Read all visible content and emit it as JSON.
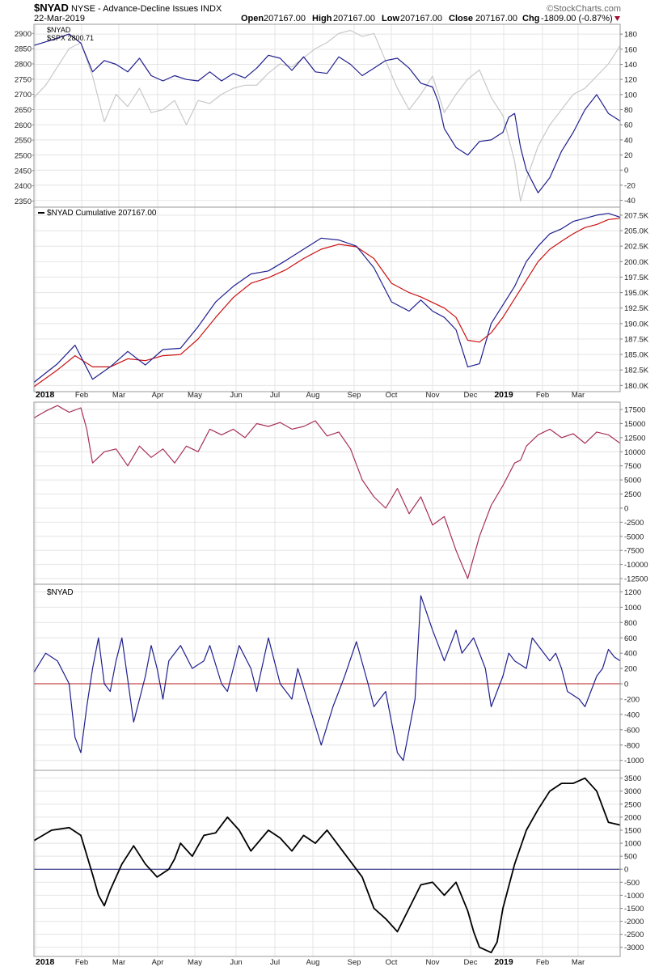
{
  "header": {
    "symbol": "$NYAD",
    "description": "NYSE - Advance-Decline Issues",
    "exchange": "INDX",
    "date": "22-Mar-2019",
    "open_label": "Open",
    "open": "207167.00",
    "high_label": "High",
    "high": "207167.00",
    "low_label": "Low",
    "low": "207167.00",
    "close_label": "Close",
    "close": "207167.00",
    "chg_label": "Chg",
    "chg": "-1809.00 (-0.87%)",
    "chg_icon": "down-triangle-icon",
    "watermark": "©StockCharts.com"
  },
  "x_axis": {
    "months": [
      "2018",
      "Feb",
      "Mar",
      "Apr",
      "May",
      "Jun",
      "Jul",
      "Aug",
      "Sep",
      "Oct",
      "Nov",
      "Dec",
      "2019",
      "Feb",
      "Mar"
    ],
    "bold_labels": [
      "2018",
      "2019"
    ]
  },
  "colors": {
    "navy": "#1f1f8f",
    "gray": "#c8c8c8",
    "red": "#cc1111",
    "maroon": "#a83057",
    "black": "#000000",
    "grid": "#e4e4e4",
    "border": "#9a9a9a",
    "zero_red": "#b01c1c",
    "zero_navy": "#1a1a7a"
  },
  "chart_data": [
    {
      "panel": "price",
      "type": "line",
      "legend": [
        "$NYAD",
        "$SPX 2800.71"
      ],
      "left_axis": {
        "label": "$SPX",
        "ticks": [
          2350,
          2400,
          2450,
          2500,
          2550,
          2600,
          2650,
          2700,
          2750,
          2800,
          2850,
          2900
        ],
        "range": [
          2330,
          2930
        ]
      },
      "right_axis": {
        "label": "$NYAD",
        "ticks": [
          -40,
          -20,
          0,
          20,
          40,
          60,
          80,
          100,
          120,
          140,
          160,
          180
        ],
        "range": [
          -49,
          193
        ]
      },
      "series": [
        {
          "name": "$NYAD",
          "axis": "right",
          "color": "navy",
          "x": [
            0,
            0.03,
            0.06,
            0.08,
            0.1,
            0.12,
            0.14,
            0.16,
            0.18,
            0.2,
            0.22,
            0.24,
            0.26,
            0.28,
            0.3,
            0.32,
            0.34,
            0.36,
            0.38,
            0.4,
            0.42,
            0.44,
            0.46,
            0.48,
            0.5,
            0.52,
            0.54,
            0.56,
            0.58,
            0.6,
            0.62,
            0.64,
            0.66,
            0.68,
            0.69,
            0.7,
            0.72,
            0.74,
            0.76,
            0.78,
            0.8,
            0.81,
            0.82,
            0.83,
            0.84,
            0.86,
            0.88,
            0.9,
            0.92,
            0.94,
            0.96,
            0.98,
            1.0
          ],
          "values": [
            165,
            172,
            180,
            168,
            130,
            145,
            140,
            130,
            148,
            125,
            118,
            125,
            120,
            118,
            130,
            118,
            128,
            122,
            135,
            152,
            148,
            132,
            150,
            130,
            128,
            150,
            140,
            125,
            135,
            145,
            148,
            135,
            115,
            110,
            90,
            55,
            30,
            20,
            38,
            40,
            50,
            70,
            75,
            30,
            0,
            -30,
            -10,
            25,
            50,
            80,
            100,
            75,
            65
          ]
        },
        {
          "name": "$SPX",
          "axis": "left",
          "color": "gray",
          "x": [
            0,
            0.02,
            0.04,
            0.06,
            0.08,
            0.1,
            0.12,
            0.14,
            0.16,
            0.18,
            0.2,
            0.22,
            0.24,
            0.26,
            0.28,
            0.3,
            0.32,
            0.34,
            0.36,
            0.38,
            0.4,
            0.42,
            0.44,
            0.46,
            0.48,
            0.5,
            0.52,
            0.54,
            0.56,
            0.58,
            0.6,
            0.62,
            0.64,
            0.66,
            0.68,
            0.7,
            0.72,
            0.74,
            0.76,
            0.78,
            0.8,
            0.82,
            0.83,
            0.84,
            0.86,
            0.88,
            0.9,
            0.92,
            0.94,
            0.96,
            0.98,
            1.0
          ],
          "values": [
            2690,
            2730,
            2790,
            2850,
            2870,
            2760,
            2610,
            2700,
            2660,
            2720,
            2640,
            2650,
            2680,
            2600,
            2680,
            2670,
            2700,
            2720,
            2730,
            2730,
            2770,
            2800,
            2790,
            2820,
            2850,
            2870,
            2900,
            2910,
            2890,
            2900,
            2810,
            2720,
            2650,
            2700,
            2760,
            2640,
            2700,
            2750,
            2780,
            2690,
            2630,
            2480,
            2350,
            2420,
            2530,
            2600,
            2650,
            2700,
            2720,
            2760,
            2800,
            2860
          ]
        }
      ]
    },
    {
      "panel": "cumulative",
      "type": "line",
      "legend": [
        "$NYAD Cumulative 207167.00"
      ],
      "right_axis": {
        "ticks": [
          180000,
          182500,
          185000,
          187500,
          190000,
          192500,
          195000,
          197500,
          200000,
          202500,
          205000,
          207500
        ],
        "tick_labels": [
          "180.0K",
          "182.5K",
          "185.0K",
          "187.5K",
          "190.0K",
          "192.5K",
          "195.0K",
          "197.5K",
          "200.0K",
          "202.5K",
          "205.0K",
          "207.5K"
        ],
        "range": [
          179000,
          208800
        ]
      },
      "series": [
        {
          "name": "$NYAD Cumulative",
          "color": "navy",
          "x": [
            0,
            0.04,
            0.07,
            0.1,
            0.13,
            0.16,
            0.19,
            0.22,
            0.25,
            0.28,
            0.31,
            0.34,
            0.37,
            0.4,
            0.43,
            0.46,
            0.49,
            0.52,
            0.55,
            0.58,
            0.61,
            0.64,
            0.66,
            0.68,
            0.7,
            0.72,
            0.74,
            0.76,
            0.78,
            0.8,
            0.82,
            0.84,
            0.86,
            0.88,
            0.9,
            0.92,
            0.94,
            0.96,
            0.98,
            1.0
          ],
          "values": [
            180500,
            183500,
            186500,
            181000,
            183000,
            185500,
            183300,
            185800,
            186000,
            189500,
            193500,
            196000,
            198000,
            198500,
            200200,
            202000,
            203800,
            203500,
            202500,
            199000,
            193500,
            192000,
            193800,
            192000,
            191000,
            189000,
            183000,
            183500,
            190000,
            193000,
            196000,
            200000,
            202500,
            204500,
            205300,
            206500,
            207000,
            207500,
            207800,
            207167
          ]
        },
        {
          "name": "Moving Average",
          "color": "red",
          "x": [
            0,
            0.04,
            0.07,
            0.1,
            0.13,
            0.16,
            0.19,
            0.22,
            0.25,
            0.28,
            0.31,
            0.34,
            0.37,
            0.4,
            0.43,
            0.46,
            0.49,
            0.52,
            0.55,
            0.58,
            0.61,
            0.64,
            0.66,
            0.68,
            0.7,
            0.72,
            0.74,
            0.76,
            0.78,
            0.8,
            0.82,
            0.84,
            0.86,
            0.88,
            0.9,
            0.92,
            0.94,
            0.96,
            0.98,
            1.0
          ],
          "values": [
            179800,
            182500,
            184800,
            183000,
            183000,
            184300,
            184000,
            184800,
            185000,
            187500,
            191000,
            194200,
            196500,
            197400,
            198700,
            200500,
            202000,
            202800,
            202400,
            200500,
            196500,
            195000,
            194300,
            193400,
            192500,
            191000,
            187300,
            187000,
            188500,
            191000,
            194000,
            197000,
            200000,
            202000,
            203300,
            204500,
            205500,
            206000,
            206800,
            207000
          ]
        }
      ]
    },
    {
      "panel": "oscillator-1",
      "type": "line",
      "right_axis": {
        "ticks": [
          -12500,
          -10000,
          -7500,
          -5000,
          -2500,
          0,
          2500,
          5000,
          7500,
          10000,
          12500,
          15000,
          17500
        ],
        "range": [
          -13500,
          18800
        ]
      },
      "series": [
        {
          "name": "",
          "color": "maroon",
          "x": [
            0,
            0.02,
            0.04,
            0.06,
            0.08,
            0.09,
            0.1,
            0.12,
            0.14,
            0.16,
            0.18,
            0.2,
            0.22,
            0.24,
            0.26,
            0.28,
            0.3,
            0.32,
            0.34,
            0.36,
            0.38,
            0.4,
            0.42,
            0.44,
            0.46,
            0.48,
            0.5,
            0.52,
            0.54,
            0.56,
            0.58,
            0.6,
            0.62,
            0.64,
            0.66,
            0.68,
            0.7,
            0.72,
            0.74,
            0.76,
            0.78,
            0.8,
            0.82,
            0.83,
            0.84,
            0.86,
            0.88,
            0.9,
            0.92,
            0.94,
            0.96,
            0.98,
            1.0
          ],
          "values": [
            16000,
            17200,
            18200,
            17000,
            17800,
            14000,
            8000,
            10000,
            10500,
            7500,
            11000,
            9000,
            10500,
            8000,
            11000,
            10000,
            14000,
            13000,
            14000,
            12500,
            15000,
            14500,
            15200,
            14000,
            14500,
            15500,
            12800,
            13500,
            10500,
            5000,
            2000,
            0,
            3500,
            -1000,
            2000,
            -3000,
            -1500,
            -7500,
            -12500,
            -5000,
            500,
            4000,
            8000,
            8500,
            11000,
            13000,
            14000,
            12500,
            13200,
            11500,
            13500,
            13000,
            11500
          ]
        }
      ]
    },
    {
      "panel": "oscillator-2",
      "type": "line",
      "legend": [
        "$NYAD"
      ],
      "right_axis": {
        "ticks": [
          -1000,
          -800,
          -600,
          -400,
          -200,
          0,
          200,
          400,
          600,
          800,
          1000,
          1200
        ],
        "range": [
          -1130,
          1300
        ]
      },
      "series": [
        {
          "name": "$NYAD",
          "color": "navy",
          "x": [
            0,
            0.02,
            0.04,
            0.06,
            0.07,
            0.08,
            0.09,
            0.1,
            0.11,
            0.12,
            0.13,
            0.14,
            0.15,
            0.17,
            0.19,
            0.2,
            0.21,
            0.22,
            0.23,
            0.25,
            0.27,
            0.29,
            0.3,
            0.32,
            0.33,
            0.35,
            0.37,
            0.38,
            0.4,
            0.42,
            0.44,
            0.45,
            0.47,
            0.49,
            0.51,
            0.53,
            0.55,
            0.57,
            0.58,
            0.6,
            0.62,
            0.63,
            0.65,
            0.66,
            0.68,
            0.69,
            0.7,
            0.72,
            0.73,
            0.75,
            0.77,
            0.78,
            0.8,
            0.81,
            0.82,
            0.84,
            0.85,
            0.86,
            0.88,
            0.89,
            0.9,
            0.91,
            0.93,
            0.94,
            0.96,
            0.97,
            0.98,
            0.99,
            1.0
          ],
          "values": [
            150,
            400,
            300,
            0,
            -700,
            -900,
            -300,
            200,
            600,
            0,
            -100,
            300,
            600,
            -500,
            100,
            500,
            200,
            -200,
            300,
            500,
            200,
            300,
            500,
            0,
            -100,
            500,
            200,
            -100,
            600,
            0,
            -200,
            200,
            -300,
            -800,
            -300,
            100,
            550,
            0,
            -300,
            -100,
            -900,
            -1000,
            -200,
            1150,
            700,
            500,
            300,
            700,
            400,
            600,
            200,
            -300,
            100,
            400,
            300,
            200,
            600,
            500,
            300,
            400,
            200,
            -100,
            -200,
            -300,
            100,
            200,
            450,
            350,
            300
          ]
        }
      ]
    },
    {
      "panel": "oscillator-3",
      "type": "line",
      "right_axis": {
        "ticks": [
          -3000,
          -2500,
          -2000,
          -1500,
          -1000,
          -500,
          0,
          500,
          1000,
          1500,
          2000,
          2500,
          3000,
          3500
        ],
        "range": [
          -3350,
          3800
        ]
      },
      "series": [
        {
          "name": "",
          "color": "black",
          "x": [
            0,
            0.03,
            0.06,
            0.08,
            0.1,
            0.11,
            0.12,
            0.13,
            0.15,
            0.17,
            0.19,
            0.21,
            0.23,
            0.24,
            0.25,
            0.27,
            0.29,
            0.31,
            0.33,
            0.35,
            0.37,
            0.4,
            0.42,
            0.44,
            0.46,
            0.48,
            0.5,
            0.52,
            0.54,
            0.56,
            0.58,
            0.6,
            0.62,
            0.64,
            0.66,
            0.68,
            0.7,
            0.72,
            0.74,
            0.75,
            0.76,
            0.78,
            0.79,
            0.8,
            0.82,
            0.84,
            0.86,
            0.88,
            0.9,
            0.92,
            0.94,
            0.96,
            0.98,
            1.0
          ],
          "values": [
            1100,
            1500,
            1600,
            1300,
            -200,
            -1000,
            -1400,
            -800,
            200,
            900,
            200,
            -300,
            0,
            400,
            1000,
            500,
            1300,
            1400,
            2000,
            1500,
            700,
            1500,
            1200,
            700,
            1300,
            1000,
            1500,
            900,
            300,
            -300,
            -1500,
            -1900,
            -2400,
            -1500,
            -600,
            -500,
            -1000,
            -500,
            -1600,
            -2400,
            -3000,
            -3200,
            -2800,
            -1500,
            200,
            1500,
            2300,
            3000,
            3300,
            3300,
            3500,
            3000,
            1800,
            1700
          ]
        }
      ]
    }
  ]
}
